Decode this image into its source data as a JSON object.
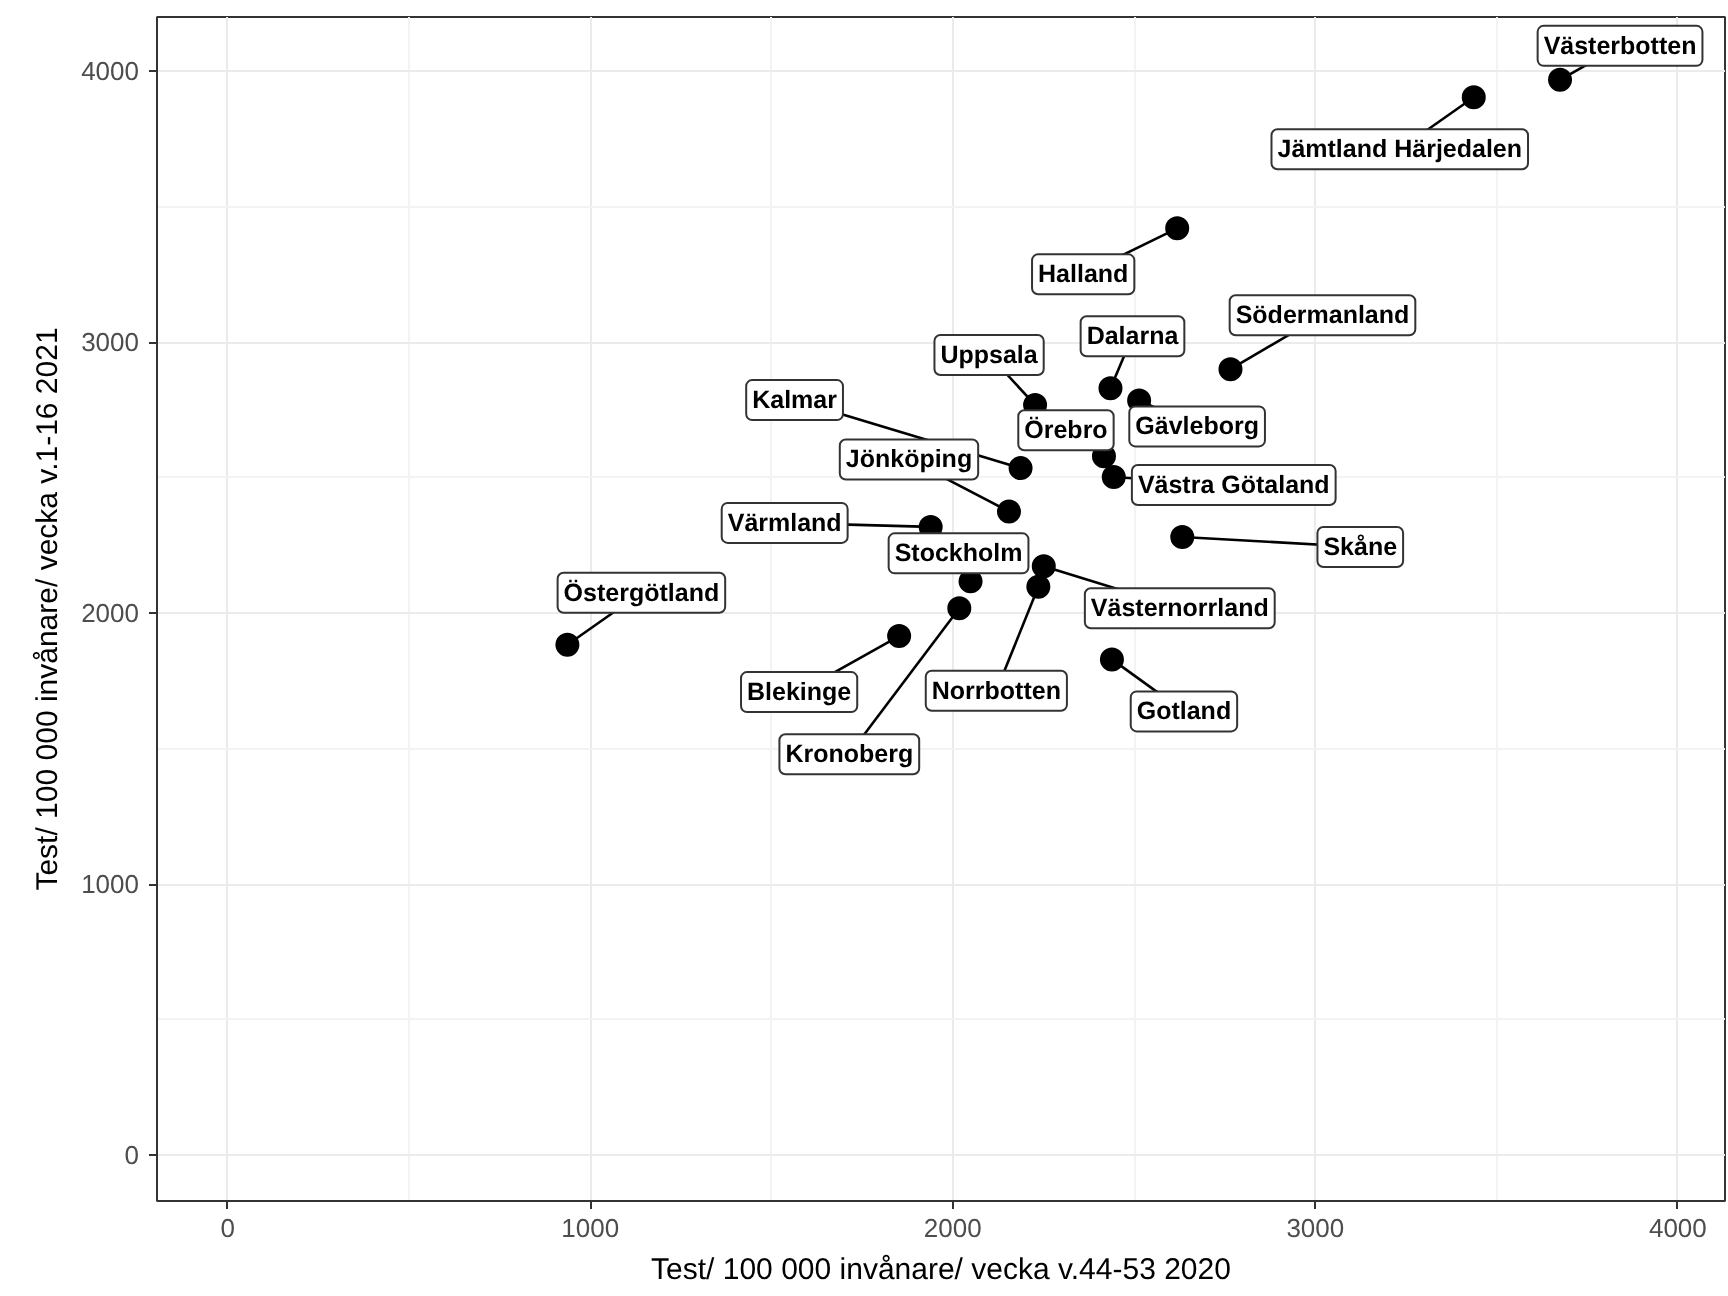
{
  "chart_data": {
    "type": "scatter",
    "xlabel": "Test/ 100 000 invånare/ vecka v.44-53 2020",
    "ylabel": "Test/ 100 000 invånare/ vecka v.1-16 2021",
    "x": [
      3675,
      3437,
      2619,
      2766,
      2435,
      2514,
      2227,
      2187,
      2417,
      2444,
      2155,
      1939,
      2633,
      2049,
      2251,
      2236,
      2018,
      1852,
      937,
      2439
    ],
    "values": [
      3968,
      3904,
      3420,
      2900,
      2830,
      2785,
      2768,
      2535,
      2579,
      2502,
      2375,
      2318,
      2281,
      2117,
      2173,
      2097,
      2018,
      1915,
      1883,
      1829
    ],
    "color": "#000000",
    "marker": "circle",
    "annotations": [
      {
        "text": "Västerbotten",
        "x": 3675,
        "y": 3968
      },
      {
        "text": "Jämtland Härjedalen",
        "x": 3437,
        "y": 3904
      },
      {
        "text": "Halland",
        "x": 2619,
        "y": 3420
      },
      {
        "text": "Södermanland",
        "x": 2766,
        "y": 2900
      },
      {
        "text": "Dalarna",
        "x": 2435,
        "y": 2830
      },
      {
        "text": "Gävleborg",
        "x": 2514,
        "y": 2785
      },
      {
        "text": "Uppsala",
        "x": 2227,
        "y": 2768
      },
      {
        "text": "Kalmar",
        "x": 2187,
        "y": 2535
      },
      {
        "text": "Örebro",
        "x": 2417,
        "y": 2579
      },
      {
        "text": "Västra Götaland",
        "x": 2444,
        "y": 2502
      },
      {
        "text": "Jönköping",
        "x": 2155,
        "y": 2375
      },
      {
        "text": "Värmland",
        "x": 1939,
        "y": 2318
      },
      {
        "text": "Skåne",
        "x": 2633,
        "y": 2281
      },
      {
        "text": "Stockholm",
        "x": 2049,
        "y": 2117
      },
      {
        "text": "Västernorrland",
        "x": 2251,
        "y": 2173
      },
      {
        "text": "Norrbotten",
        "x": 2236,
        "y": 2097
      },
      {
        "text": "Kronoberg",
        "x": 2018,
        "y": 2018
      },
      {
        "text": "Blekinge",
        "x": 1852,
        "y": 1915
      },
      {
        "text": "Östergötland",
        "x": 937,
        "y": 1883
      },
      {
        "text": "Gotland",
        "x": 2439,
        "y": 1829
      }
    ],
    "xlim": [
      -195,
      4130
    ],
    "ylim": [
      -170,
      4200
    ],
    "xticks": [
      0,
      1000,
      2000,
      3000,
      4000
    ],
    "yticks": [
      0,
      1000,
      2000,
      3000,
      4000
    ],
    "grid": true
  }
}
